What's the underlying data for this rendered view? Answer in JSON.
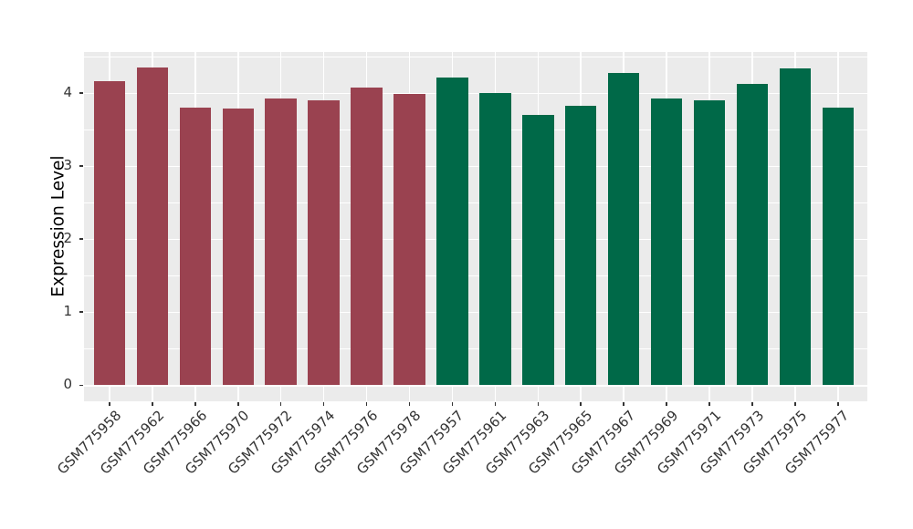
{
  "chart_data": {
    "type": "bar",
    "title": "",
    "xlabel": "",
    "ylabel": "Expression Level",
    "ylim": [
      0,
      4.56
    ],
    "yticks": [
      0,
      1,
      2,
      3,
      4
    ],
    "yticks_minor": [
      0.5,
      1.5,
      2.5,
      3.5,
      4.5
    ],
    "grid": true,
    "legend": false,
    "categories": [
      "GSM775958",
      "GSM775962",
      "GSM775966",
      "GSM775970",
      "GSM775972",
      "GSM775974",
      "GSM775976",
      "GSM775978",
      "GSM775957",
      "GSM775961",
      "GSM775963",
      "GSM775965",
      "GSM775967",
      "GSM775969",
      "GSM775971",
      "GSM775973",
      "GSM775975",
      "GSM775977"
    ],
    "values": [
      4.16,
      4.34,
      3.8,
      3.78,
      3.92,
      3.9,
      4.07,
      3.98,
      4.21,
      4.0,
      3.7,
      3.82,
      4.27,
      3.92,
      3.9,
      4.12,
      4.33,
      3.79
    ],
    "color_groups": [
      "maroon",
      "maroon",
      "maroon",
      "maroon",
      "maroon",
      "maroon",
      "maroon",
      "maroon",
      "green",
      "green",
      "green",
      "green",
      "green",
      "green",
      "green",
      "green",
      "green",
      "green"
    ]
  },
  "colors": {
    "maroon": "#9A4250",
    "green": "#006948",
    "panel_bg": "#EBEBEB",
    "gridline": "#FFFFFF",
    "tick": "#333333",
    "axis_text": "#333333",
    "axis_title": "#000000",
    "background": "#FFFFFF"
  }
}
